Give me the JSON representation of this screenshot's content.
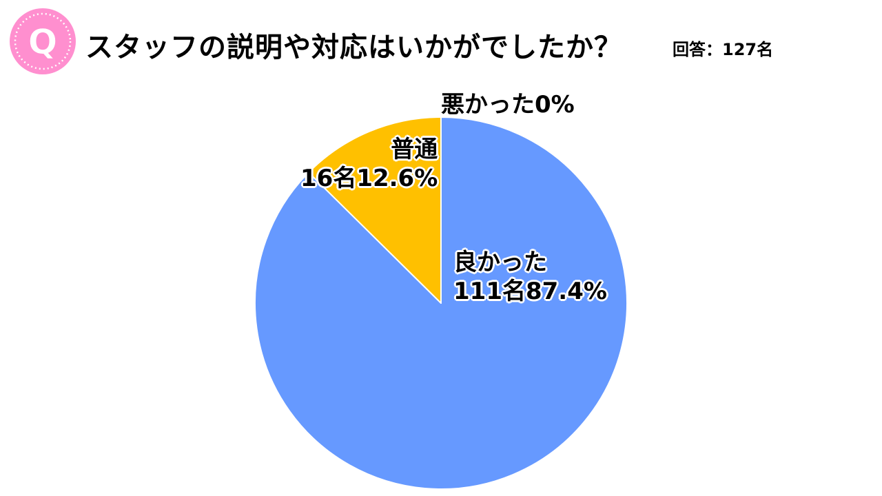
{
  "header": {
    "badge_letter": "Q",
    "title": "スタッフの説明や対応はいかがでしたか？",
    "respondents": "回答：127名"
  },
  "chart_data": {
    "type": "pie",
    "title": "スタッフの説明や対応はいかがでしたか？",
    "total_label": "回答：127名",
    "slices": [
      {
        "name": "良かった",
        "count_label": "111名",
        "percent_label": "87.4%",
        "count": 111,
        "percent": 87.4,
        "color": "#6699ff"
      },
      {
        "name": "普通",
        "count_label": "16名",
        "percent_label": "12.6%",
        "count": 16,
        "percent": 12.6,
        "color": "#ffc000"
      },
      {
        "name": "悪かった",
        "count_label": "",
        "percent_label": "0%",
        "count": 0,
        "percent": 0,
        "color": "#a5a5a5"
      }
    ]
  },
  "colors": {
    "badge_pink": "#ff8fcf",
    "badge_ring": "#ffffff",
    "slice_border": "#ffffff"
  }
}
